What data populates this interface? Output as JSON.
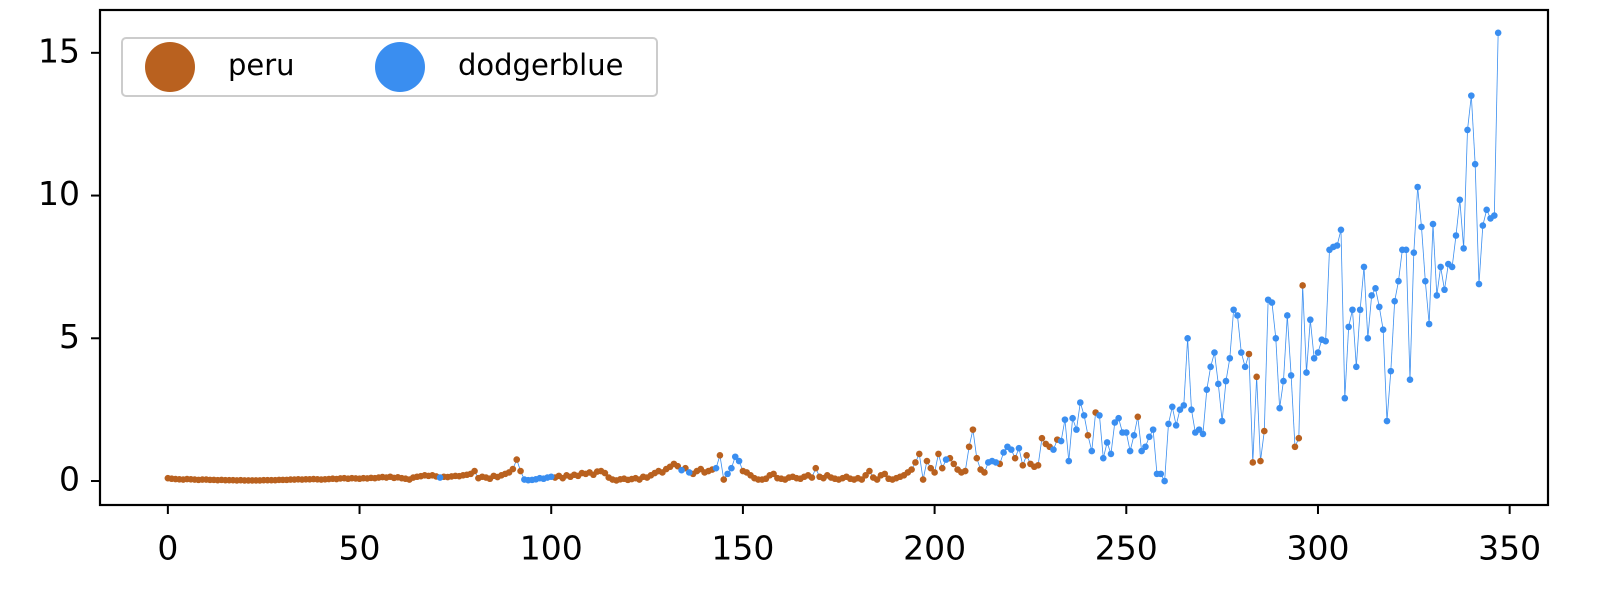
{
  "chart_data": {
    "type": "line-scatter",
    "x": [
      0,
      1,
      2,
      3,
      4,
      5,
      6,
      7,
      8,
      9,
      10,
      11,
      12,
      13,
      14,
      15,
      16,
      17,
      18,
      19,
      20,
      21,
      22,
      23,
      24,
      25,
      26,
      27,
      28,
      29,
      30,
      31,
      32,
      33,
      34,
      35,
      36,
      37,
      38,
      39,
      40,
      41,
      42,
      43,
      44,
      45,
      46,
      47,
      48,
      49,
      50,
      51,
      52,
      53,
      54,
      55,
      56,
      57,
      58,
      59,
      60,
      61,
      62,
      63,
      64,
      65,
      66,
      67,
      68,
      69,
      70,
      71,
      72,
      73,
      74,
      75,
      76,
      77,
      78,
      79,
      80,
      81,
      82,
      83,
      84,
      85,
      86,
      87,
      88,
      89,
      90,
      91,
      92,
      93,
      94,
      95,
      96,
      97,
      98,
      99,
      100,
      101,
      102,
      103,
      104,
      105,
      106,
      107,
      108,
      109,
      110,
      111,
      112,
      113,
      114,
      115,
      116,
      117,
      118,
      119,
      120,
      121,
      122,
      123,
      124,
      125,
      126,
      127,
      128,
      129,
      130,
      131,
      132,
      133,
      134,
      135,
      136,
      137,
      138,
      139,
      140,
      141,
      142,
      143,
      144,
      145,
      146,
      147,
      148,
      149,
      150,
      151,
      152,
      153,
      154,
      155,
      156,
      157,
      158,
      159,
      160,
      161,
      162,
      163,
      164,
      165,
      166,
      167,
      168,
      169,
      170,
      171,
      172,
      173,
      174,
      175,
      176,
      177,
      178,
      179,
      180,
      181,
      182,
      183,
      184,
      185,
      186,
      187,
      188,
      189,
      190,
      191,
      192,
      193,
      194,
      195,
      196,
      197,
      198,
      199,
      200,
      201,
      202,
      203,
      204,
      205,
      206,
      207,
      208,
      209,
      210,
      211,
      212,
      213,
      214,
      215,
      216,
      217,
      218,
      219,
      220,
      221,
      222,
      223,
      224,
      225,
      226,
      227,
      228,
      229,
      230,
      231,
      232,
      233,
      234,
      235,
      236,
      237,
      238,
      239,
      240,
      241,
      242,
      243,
      244,
      245,
      246,
      247,
      248,
      249,
      250,
      251,
      252,
      253,
      254,
      255,
      256,
      257,
      258,
      259,
      260,
      261,
      262,
      263,
      264,
      265,
      266,
      267,
      268,
      269,
      270,
      271,
      272,
      273,
      274,
      275,
      276,
      277,
      278,
      279,
      280,
      281,
      282,
      283,
      284,
      285,
      286,
      287,
      288,
      289,
      290,
      291,
      292,
      293,
      294,
      295,
      296,
      297,
      298,
      299,
      300,
      301,
      302,
      303,
      304,
      305,
      306,
      307,
      308,
      309,
      310,
      311,
      312,
      313,
      314,
      315,
      316,
      317,
      318,
      319,
      320,
      321,
      322,
      323,
      324,
      325,
      326,
      327,
      328,
      329,
      330,
      331,
      332,
      333,
      334,
      335,
      336,
      337,
      338,
      339,
      340,
      341,
      342,
      343,
      344,
      345,
      346,
      347
    ],
    "series": [
      {
        "name": "peru",
        "color": "#b9611f",
        "values": [
          0.1,
          0.08,
          0.07,
          0.06,
          0.05,
          0.07,
          0.06,
          0.05,
          0.04,
          0.05,
          0.05,
          0.04,
          0.04,
          0.03,
          0.04,
          0.03,
          0.03,
          0.03,
          0.02,
          0.03,
          0.02,
          0.02,
          0.02,
          0.02,
          0.02,
          0.03,
          0.03,
          0.03,
          0.03,
          0.04,
          0.04,
          0.04,
          0.05,
          0.05,
          0.06,
          0.05,
          0.06,
          0.06,
          0.07,
          0.06,
          0.05,
          0.06,
          0.07,
          0.08,
          0.07,
          0.09,
          0.1,
          0.08,
          0.1,
          0.09,
          0.08,
          0.1,
          0.09,
          0.11,
          0.1,
          0.12,
          0.14,
          0.12,
          0.15,
          0.11,
          0.13,
          0.1,
          0.08,
          0.05,
          0.12,
          0.15,
          0.17,
          0.2,
          0.18,
          0.2,
          0.16,
          null,
          0.15,
          0.14,
          0.16,
          0.18,
          0.17,
          0.2,
          0.22,
          0.25,
          0.35,
          0.1,
          0.15,
          0.12,
          0.08,
          0.18,
          0.14,
          0.2,
          0.25,
          0.3,
          0.42,
          0.75,
          0.35,
          null,
          null,
          null,
          null,
          null,
          null,
          null,
          null,
          0.12,
          0.18,
          0.1,
          0.2,
          0.15,
          0.22,
          0.18,
          0.28,
          0.25,
          0.3,
          0.22,
          0.33,
          0.35,
          0.28,
          0.12,
          0.05,
          0.02,
          0.06,
          0.08,
          0.04,
          0.07,
          0.1,
          0.05,
          0.15,
          0.12,
          0.2,
          0.28,
          0.35,
          0.3,
          0.42,
          0.5,
          0.6,
          0.52,
          null,
          0.45,
          null,
          0.25,
          0.35,
          0.42,
          0.3,
          0.35,
          0.4,
          null,
          0.9,
          0.05,
          null,
          null,
          null,
          null,
          0.35,
          0.3,
          0.2,
          0.1,
          0.05,
          0.05,
          0.08,
          0.2,
          0.25,
          0.1,
          0.08,
          0.05,
          0.12,
          0.15,
          0.1,
          0.08,
          0.15,
          0.2,
          0.12,
          0.45,
          0.15,
          0.1,
          0.2,
          0.12,
          0.08,
          0.05,
          0.1,
          0.15,
          0.08,
          0.05,
          0.1,
          0.05,
          0.2,
          0.35,
          0.12,
          0.05,
          0.2,
          0.25,
          0.08,
          0.05,
          0.1,
          0.15,
          0.2,
          0.3,
          0.4,
          0.65,
          0.95,
          0.05,
          0.7,
          0.45,
          0.3,
          0.95,
          0.45,
          null,
          0.8,
          0.6,
          0.4,
          0.3,
          0.35,
          1.2,
          1.8,
          0.8,
          0.4,
          0.3,
          null,
          null,
          null,
          0.6,
          null,
          null,
          null,
          0.8,
          null,
          0.55,
          0.9,
          0.6,
          0.5,
          0.55,
          1.5,
          1.3,
          1.2,
          null,
          1.45,
          null,
          null,
          null,
          null,
          null,
          null,
          null,
          1.6,
          null,
          2.4,
          null,
          null,
          null,
          null,
          null,
          null,
          null,
          null,
          null,
          null,
          2.25,
          null,
          null,
          null,
          null,
          null,
          null,
          null,
          null,
          null,
          null,
          null,
          null,
          null,
          null,
          null,
          null,
          null,
          null,
          null,
          null,
          null,
          null,
          null,
          null,
          null,
          null,
          null,
          null,
          4.45,
          0.65,
          3.65,
          0.7,
          1.75,
          null,
          null,
          null,
          null,
          null,
          null,
          null,
          1.2,
          1.5,
          6.85,
          null,
          null,
          null,
          null,
          null,
          null,
          null,
          null,
          null,
          null,
          null,
          null,
          null,
          null,
          null,
          null,
          null,
          null,
          null,
          null,
          null,
          null,
          null,
          null,
          null,
          null,
          null,
          null,
          null,
          null,
          null,
          null,
          null,
          null,
          null,
          null,
          null,
          null,
          null,
          null,
          null,
          null,
          null,
          null,
          null,
          null,
          null,
          null,
          null,
          null,
          null
        ]
      },
      {
        "name": "dodgerblue",
        "color": "#3a8ef0",
        "values": [
          null,
          null,
          null,
          null,
          null,
          null,
          null,
          null,
          null,
          null,
          null,
          null,
          null,
          null,
          null,
          null,
          null,
          null,
          null,
          null,
          null,
          null,
          null,
          null,
          null,
          null,
          null,
          null,
          null,
          null,
          null,
          null,
          null,
          null,
          null,
          null,
          null,
          null,
          null,
          null,
          null,
          null,
          null,
          null,
          null,
          null,
          null,
          null,
          null,
          null,
          null,
          null,
          null,
          null,
          null,
          null,
          null,
          null,
          null,
          null,
          null,
          null,
          null,
          null,
          null,
          null,
          null,
          null,
          null,
          null,
          null,
          0.12,
          null,
          null,
          null,
          null,
          null,
          null,
          null,
          null,
          null,
          null,
          null,
          null,
          null,
          null,
          null,
          null,
          null,
          null,
          null,
          null,
          null,
          0.05,
          0.03,
          0.04,
          0.06,
          0.1,
          0.08,
          0.12,
          0.15,
          null,
          null,
          null,
          null,
          null,
          null,
          null,
          null,
          null,
          null,
          null,
          null,
          null,
          null,
          null,
          null,
          null,
          null,
          null,
          null,
          null,
          null,
          null,
          null,
          null,
          null,
          null,
          null,
          null,
          null,
          null,
          null,
          null,
          0.38,
          null,
          0.3,
          null,
          null,
          null,
          null,
          null,
          null,
          0.45,
          null,
          null,
          0.25,
          0.45,
          0.85,
          0.7,
          null,
          null,
          null,
          null,
          null,
          null,
          null,
          null,
          null,
          null,
          null,
          null,
          null,
          null,
          null,
          null,
          null,
          null,
          null,
          null,
          null,
          null,
          null,
          null,
          null,
          null,
          null,
          null,
          null,
          null,
          null,
          null,
          null,
          null,
          null,
          null,
          null,
          null,
          null,
          null,
          null,
          null,
          null,
          null,
          null,
          null,
          null,
          null,
          null,
          null,
          null,
          null,
          null,
          0.75,
          null,
          null,
          null,
          null,
          null,
          null,
          null,
          null,
          null,
          null,
          0.65,
          0.7,
          0.65,
          null,
          1.0,
          1.2,
          1.1,
          null,
          1.15,
          null,
          null,
          null,
          null,
          null,
          null,
          null,
          null,
          1.1,
          null,
          1.4,
          2.15,
          0.7,
          2.2,
          1.8,
          2.75,
          2.3,
          null,
          1.05,
          null,
          2.3,
          0.8,
          1.35,
          0.95,
          2.05,
          2.2,
          1.7,
          1.7,
          1.05,
          1.6,
          null,
          1.05,
          1.2,
          1.55,
          1.8,
          0.25,
          0.25,
          0,
          2.0,
          2.6,
          1.95,
          2.5,
          2.65,
          5.0,
          2.5,
          1.7,
          1.8,
          1.65,
          3.2,
          4.0,
          4.5,
          3.4,
          2.1,
          3.5,
          4.3,
          6.0,
          5.8,
          4.5,
          4.0,
          null,
          null,
          null,
          null,
          null,
          6.35,
          6.25,
          5.0,
          2.55,
          3.5,
          5.8,
          3.7,
          null,
          null,
          null,
          3.8,
          5.65,
          4.3,
          4.5,
          4.95,
          4.9,
          8.1,
          8.2,
          8.25,
          8.8,
          2.9,
          5.4,
          6.0,
          4.0,
          6.0,
          7.5,
          5.0,
          6.5,
          6.75,
          6.1,
          5.3,
          2.1,
          3.85,
          6.3,
          7.0,
          8.1,
          8.1,
          3.55,
          8.0,
          10.3,
          8.9,
          7.0,
          5.5,
          9.0,
          6.5,
          7.5,
          6.7,
          7.6,
          7.5,
          8.6,
          9.85,
          8.15,
          12.3,
          13.5,
          11.1,
          6.9,
          8.95,
          9.5,
          9.2,
          9.3,
          15.7
        ]
      }
    ],
    "line_color": "#3a8ef0",
    "xlim": [
      -17.7,
      360
    ],
    "ylim": [
      -0.84,
      16.5
    ],
    "xticks": [
      0,
      50,
      100,
      150,
      200,
      250,
      300,
      350
    ],
    "yticks": [
      0,
      5,
      10,
      15
    ],
    "legend": "upper left"
  }
}
